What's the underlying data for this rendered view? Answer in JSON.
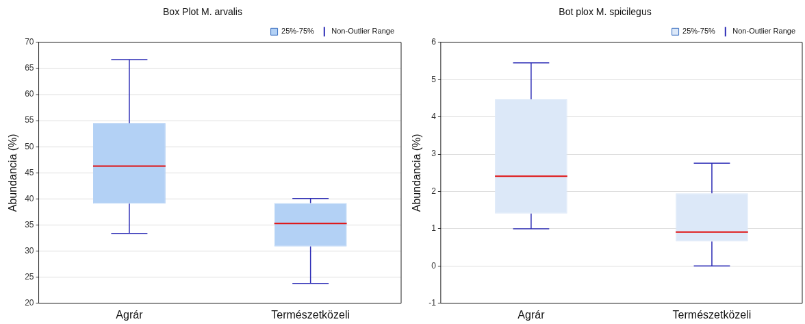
{
  "chart_data": [
    {
      "type": "box",
      "title": "Box Plot M. arvalis",
      "ylabel": "Abundancia (%)",
      "categories": [
        "Agrár",
        "Természetközeli"
      ],
      "series": [
        {
          "name": "25%-75%",
          "color": "#b3d1f5",
          "boxes": [
            {
              "low": 33.4,
              "q1": 39.1,
              "median": 46.3,
              "q3": 54.5,
              "high": 66.7
            },
            {
              "low": 23.8,
              "q1": 30.9,
              "median": 35.3,
              "q3": 39.2,
              "high": 40.1
            }
          ]
        }
      ],
      "ylim": [
        20,
        70
      ],
      "yticks": [
        20,
        25,
        30,
        35,
        40,
        45,
        50,
        55,
        60,
        65,
        70
      ],
      "grid": "y",
      "legend": "top right",
      "annotations": [
        "Non-Outlier Range"
      ]
    },
    {
      "type": "box",
      "title": "Bot plox M. spicilegus",
      "ylabel": "Abundancia (%)",
      "categories": [
        "Agrár",
        "Természetközeli"
      ],
      "series": [
        {
          "name": "25%-75%",
          "color": "#dce8f8",
          "boxes": [
            {
              "low": 1.0,
              "q1": 1.41,
              "median": 2.41,
              "q3": 4.47,
              "high": 5.45
            },
            {
              "low": 0.0,
              "q1": 0.66,
              "median": 0.91,
              "q3": 1.95,
              "high": 2.76
            }
          ]
        }
      ],
      "ylim": [
        -1,
        6
      ],
      "yticks": [
        -1,
        0,
        1,
        2,
        3,
        4,
        5,
        6
      ],
      "grid": "y",
      "legend": "top right",
      "annotations": [
        "Non-Outlier Range"
      ]
    }
  ]
}
